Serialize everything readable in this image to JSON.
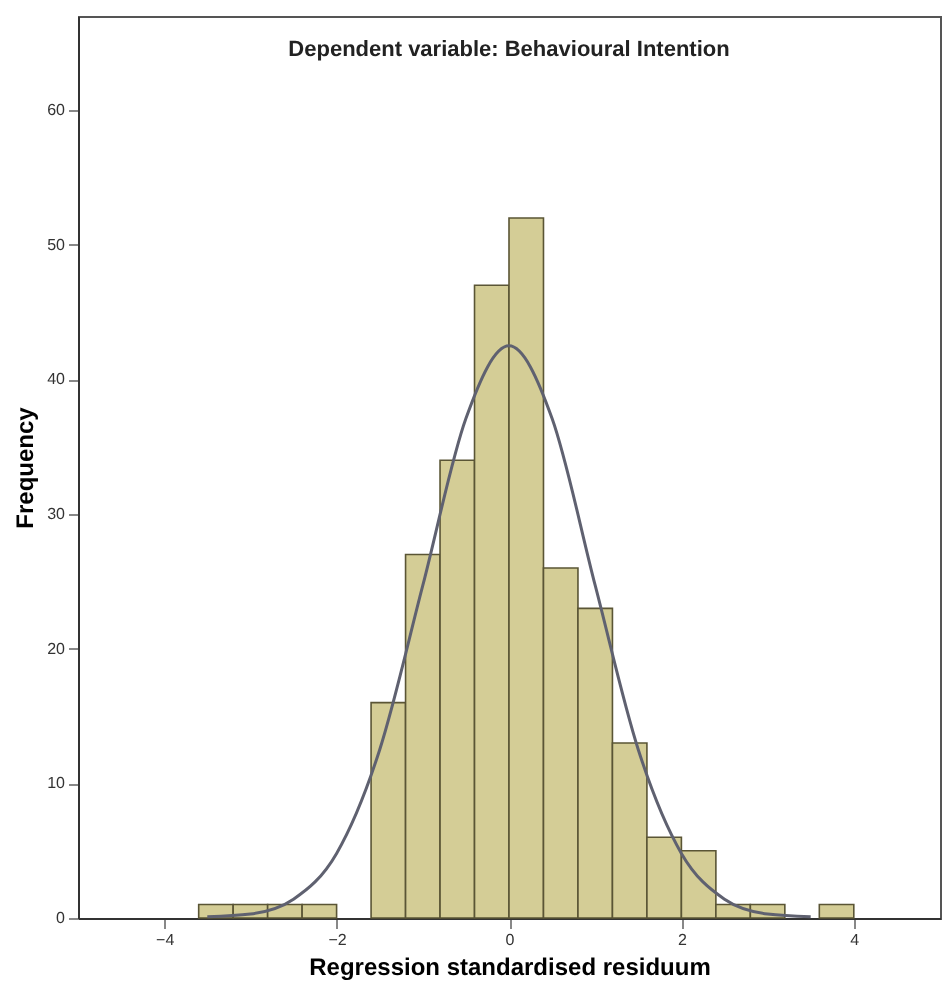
{
  "chart_data": {
    "type": "histogram",
    "title": "Dependent variable: Behavioural Intention",
    "xlabel": "Regression standardised residuum",
    "ylabel": "Frequency",
    "bins": [
      -3.6,
      -3.2,
      -2.8,
      -2.4,
      -2.0,
      -1.6,
      -1.2,
      -0.8,
      -0.4,
      0,
      0.4,
      0.8,
      1.2,
      1.6,
      2.0,
      2.4,
      2.8,
      3.2,
      3.6,
      4.0
    ],
    "values": [
      1,
      1,
      1,
      1,
      0,
      16,
      27,
      34,
      47,
      52,
      26,
      23,
      13,
      6,
      5,
      1,
      1,
      0,
      1
    ],
    "color": "#d4cd96",
    "series": [
      {
        "type": "line",
        "color": "#5f6170",
        "x": [
          -3.5,
          -3,
          -2.5,
          -2,
          -1.5,
          -1,
          -0.5,
          0,
          0.5,
          1,
          1.5,
          2,
          2.5,
          3,
          3.5
        ],
        "values": [
          0.1,
          0.3,
          1.4,
          4.8,
          12.5,
          24.7,
          37.1,
          42.5,
          37.1,
          24.7,
          12.5,
          4.8,
          1.4,
          0.3,
          0.1
        ]
      }
    ],
    "xlim": [
      -5,
      5
    ],
    "xticks": [
      -4,
      -2,
      0,
      2,
      4
    ],
    "ylim": [
      0,
      67
    ],
    "yticks": [
      0,
      10,
      20,
      30,
      40,
      50,
      60
    ]
  }
}
